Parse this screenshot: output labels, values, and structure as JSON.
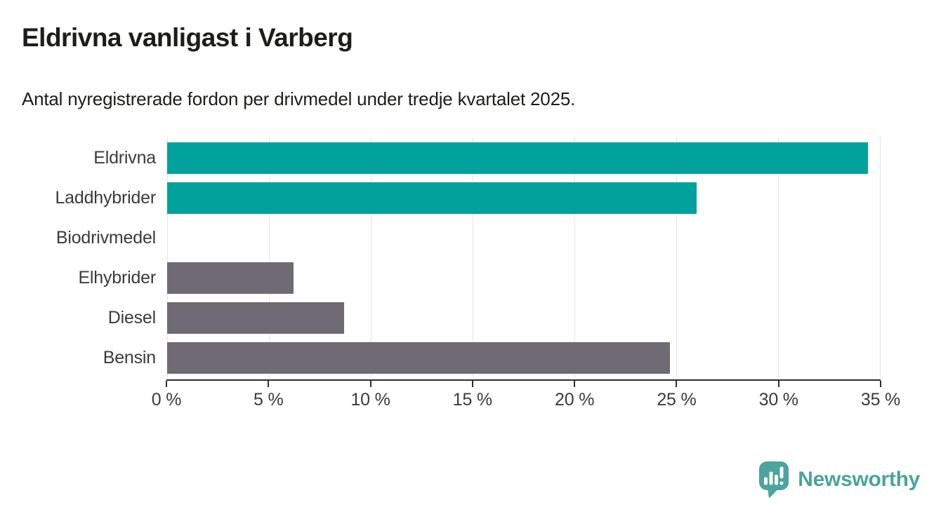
{
  "header": {
    "title": "Eldrivna vanligast i Varberg",
    "subtitle": "Antal nyregistrerade fordon per drivmedel under tredje kvartalet 2025."
  },
  "chart_data": {
    "type": "bar",
    "orientation": "horizontal",
    "title": "Eldrivna vanligast i Varberg",
    "subtitle": "Antal nyregistrerade fordon per drivmedel under tredje kvartalet 2025.",
    "categories": [
      "Eldrivna",
      "Laddhybrider",
      "Biodrivmedel",
      "Elhybrider",
      "Diesel",
      "Bensin"
    ],
    "values": [
      34.4,
      26.0,
      0,
      6.2,
      8.7,
      24.7
    ],
    "unit": "%",
    "bar_colors": [
      "#00a29b",
      "#00a29b",
      "#6e6b74",
      "#6e6b74",
      "#6e6b74",
      "#6e6b74"
    ],
    "highlight_color": "#00a29b",
    "default_color": "#6e6b74",
    "xlim": [
      0,
      35
    ],
    "x_tick_values": [
      0,
      5,
      10,
      15,
      20,
      25,
      30,
      35
    ],
    "x_tick_labels": [
      "0 %",
      "5 %",
      "10 %",
      "15 %",
      "20 %",
      "25 %",
      "30 %",
      "35 %"
    ],
    "grid": "vertical-light",
    "legend": "none"
  },
  "footer": {
    "brand": "Newsworthy",
    "brand_color": "#4ba49d",
    "logo_icon": "newsworthy-bar-chart-pin-icon"
  }
}
